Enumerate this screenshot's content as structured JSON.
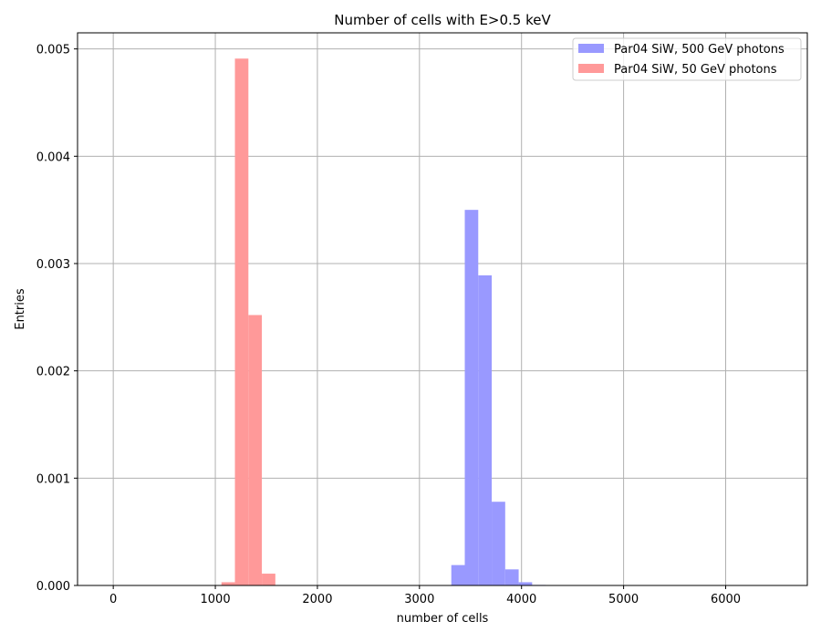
{
  "chart_data": {
    "type": "bar",
    "title": "Number of cells with E>0.5 keV",
    "xlabel": "number of cells",
    "ylabel": "Entries",
    "xlim": [
      -350,
      6800
    ],
    "ylim": [
      0,
      0.00515
    ],
    "xticks": [
      0,
      1000,
      2000,
      3000,
      4000,
      5000,
      6000
    ],
    "xtick_labels": [
      "0",
      "1000",
      "2000",
      "3000",
      "4000",
      "5000",
      "6000"
    ],
    "yticks": [
      0,
      0.001,
      0.002,
      0.003,
      0.004,
      0.005
    ],
    "ytick_labels": [
      "0.000",
      "0.001",
      "0.002",
      "0.003",
      "0.004",
      "0.005"
    ],
    "grid": true,
    "legend_position": "top-right",
    "bin_width": 132,
    "series": [
      {
        "name": "Par04 SiW, 500 GeV photons",
        "color": "#9999ff",
        "bins": [
          {
            "x0": 3180,
            "value": 3e-06
          },
          {
            "x0": 3312,
            "value": 0.00019
          },
          {
            "x0": 3444,
            "value": 0.0035
          },
          {
            "x0": 3576,
            "value": 0.00289
          },
          {
            "x0": 3708,
            "value": 0.00078
          },
          {
            "x0": 3840,
            "value": 0.00015
          },
          {
            "x0": 3972,
            "value": 3e-05
          },
          {
            "x0": 4104,
            "value": 5e-06
          }
        ]
      },
      {
        "name": "Par04 SiW, 50 GeV photons",
        "color": "#ff9999",
        "bins": [
          {
            "x0": 1060,
            "value": 3e-05
          },
          {
            "x0": 1192,
            "value": 0.00491
          },
          {
            "x0": 1324,
            "value": 0.00252
          },
          {
            "x0": 1456,
            "value": 0.00011
          }
        ]
      }
    ]
  }
}
